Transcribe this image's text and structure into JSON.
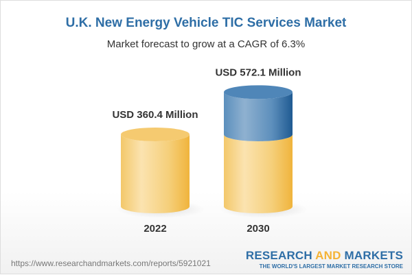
{
  "title": "U.K. New Energy Vehicle TIC Services Market",
  "subtitle": "Market forecast to grow at a CAGR of 6.3%",
  "chart_data": {
    "type": "bar",
    "style": "3d-cylinder",
    "categories": [
      "2022",
      "2030"
    ],
    "values": [
      360.4,
      572.1
    ],
    "data_labels": [
      "USD 360.4 Million",
      "USD 572.1 Million"
    ],
    "unit": "USD Million",
    "colors": {
      "base": "#f3c15a",
      "growth": "#3f7cb0"
    }
  },
  "footer": {
    "url": "https://www.researchandmarkets.com/reports/5921021",
    "logo_part1": "RESEARCH ",
    "logo_part2": "AND",
    "logo_part3": " MARKETS",
    "tagline": "THE WORLD'S LARGEST MARKET RESEARCH STORE"
  }
}
